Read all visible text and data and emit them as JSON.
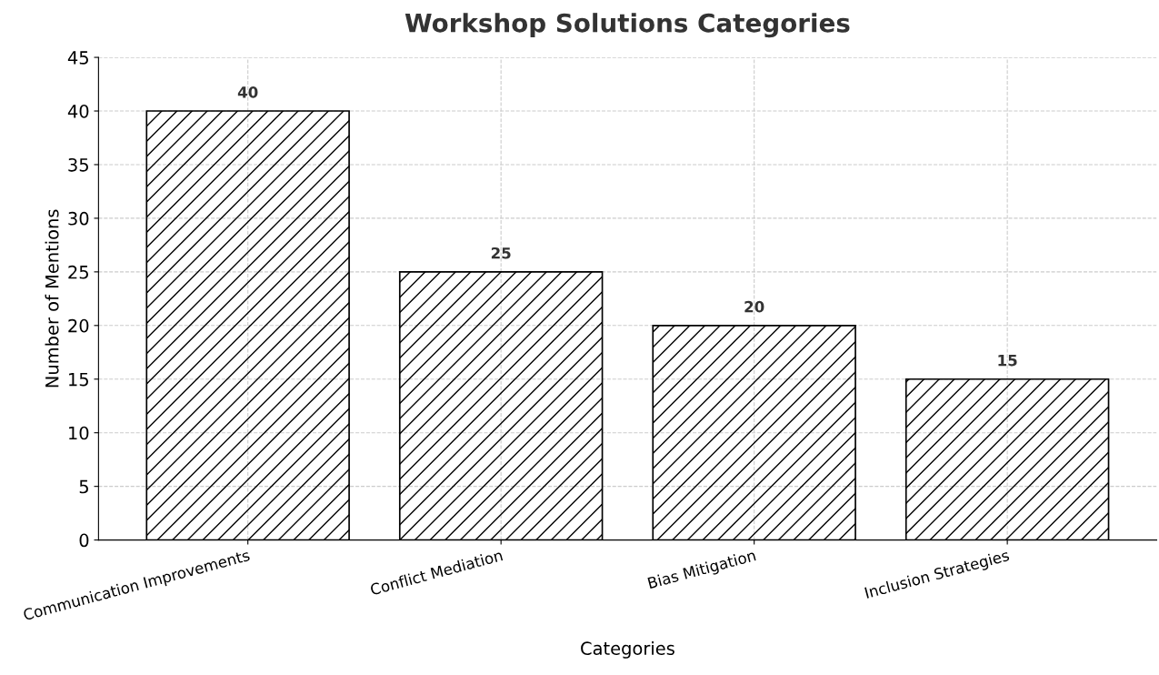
{
  "chart_data": {
    "type": "bar",
    "title": "Workshop Solutions Categories",
    "xlabel": "Categories",
    "ylabel": "Number of Mentions",
    "categories": [
      "Communication Improvements",
      "Conflict Mediation",
      "Bias Mitigation",
      "Inclusion Strategies"
    ],
    "values": [
      40,
      25,
      20,
      15
    ],
    "color": "#000000",
    "ylim": [
      0,
      45
    ],
    "yticks": [
      0,
      5,
      10,
      15,
      20,
      25,
      30,
      35,
      40,
      45
    ],
    "grid": true,
    "data_labels": true
  }
}
